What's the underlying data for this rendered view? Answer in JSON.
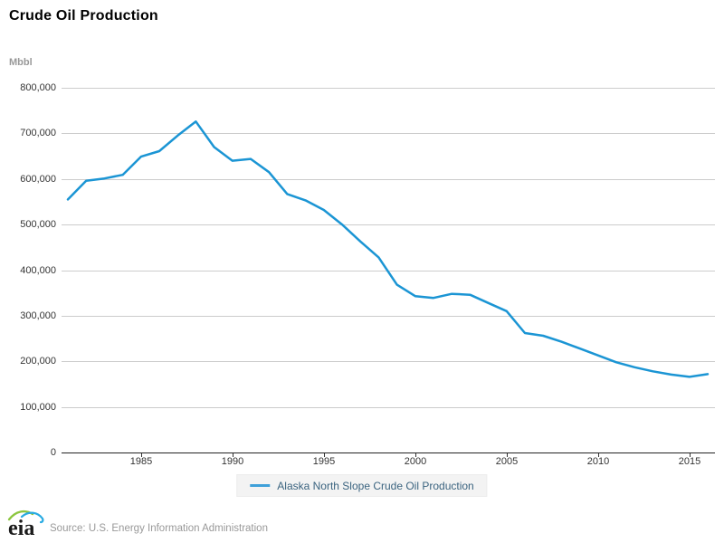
{
  "header": {
    "title": "Crude Oil Production"
  },
  "y_axis": {
    "unit": "Mbbl"
  },
  "legend": {
    "items": [
      {
        "label": "Alaska North Slope Crude Oil Production",
        "marker_color": "#3fa0d9"
      }
    ]
  },
  "footer": {
    "logo": "eia",
    "source": "Source: U.S. Energy Information Administration"
  },
  "colors": {
    "line": "#1b95d4",
    "grid": "#cccccc",
    "axis": "#222222",
    "tick": "#333333"
  },
  "chart_data": {
    "type": "line",
    "title": "Crude Oil Production",
    "ylabel": "Mbbl",
    "xlabel": "",
    "xlim": [
      1981,
      2016
    ],
    "ylim": [
      0,
      800000
    ],
    "grid": "horizontal-only",
    "legend_position": "bottom-center",
    "x_ticks": [
      {
        "v": 1985,
        "label": "1985"
      },
      {
        "v": 1990,
        "label": "1990"
      },
      {
        "v": 1995,
        "label": "1995"
      },
      {
        "v": 2000,
        "label": "2000"
      },
      {
        "v": 2005,
        "label": "2005"
      },
      {
        "v": 2010,
        "label": "2010"
      },
      {
        "v": 2015,
        "label": "2015"
      }
    ],
    "y_ticks": [
      {
        "v": 0,
        "label": "0"
      },
      {
        "v": 100000,
        "label": "100,000"
      },
      {
        "v": 200000,
        "label": "200,000"
      },
      {
        "v": 300000,
        "label": "300,000"
      },
      {
        "v": 400000,
        "label": "400,000"
      },
      {
        "v": 500000,
        "label": "500,000"
      },
      {
        "v": 600000,
        "label": "600,000"
      },
      {
        "v": 700000,
        "label": "700,000"
      },
      {
        "v": 800000,
        "label": "800,000"
      }
    ],
    "series": [
      {
        "name": "Alaska North Slope Crude Oil Production",
        "color": "#1b95d4",
        "x": [
          1981,
          1982,
          1983,
          1984,
          1985,
          1986,
          1987,
          1988,
          1989,
          1990,
          1991,
          1992,
          1993,
          1994,
          1995,
          1996,
          1997,
          1998,
          1999,
          2000,
          2001,
          2002,
          2003,
          2004,
          2005,
          2006,
          2007,
          2008,
          2009,
          2010,
          2011,
          2012,
          2013,
          2014,
          2015,
          2016
        ],
        "values": [
          555000,
          596000,
          601000,
          609000,
          649000,
          661000,
          695000,
          726000,
          670000,
          640000,
          644000,
          615000,
          567000,
          553000,
          532000,
          500000,
          463000,
          428000,
          368000,
          343000,
          339000,
          348000,
          346000,
          328000,
          310000,
          262000,
          256000,
          243000,
          228000,
          213000,
          198000,
          187000,
          178000,
          171000,
          166000,
          172000
        ]
      }
    ]
  }
}
